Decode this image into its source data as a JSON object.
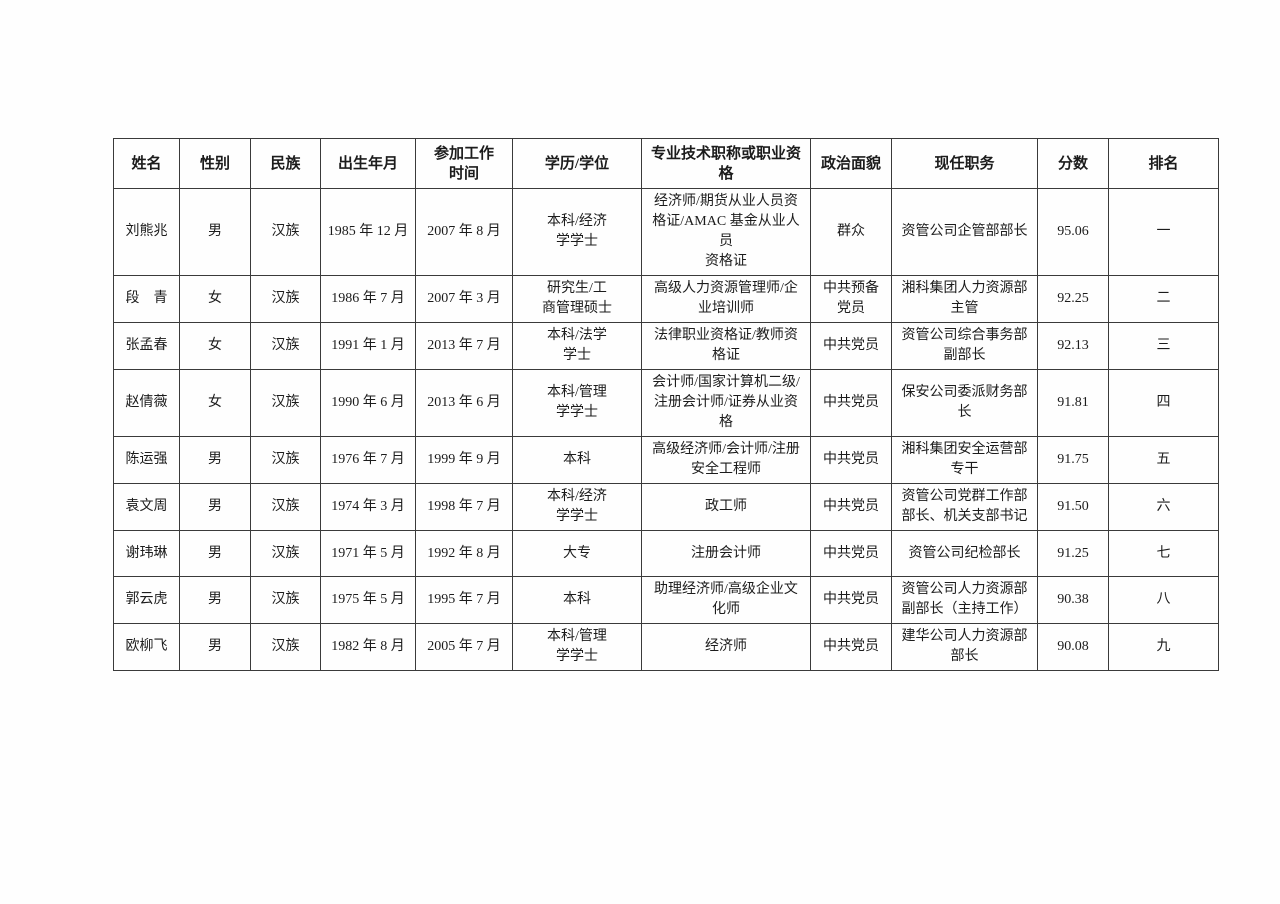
{
  "colors": {
    "page_background": "#fefefe",
    "ink": "#1c1c1c",
    "table_border": "#3a3a3a"
  },
  "table": {
    "headers": [
      "姓名",
      "性别",
      "民族",
      "出生年月",
      "参加工作\n时间",
      "学历/学位",
      "专业技术职称或职业资格",
      "政治面貌",
      "现任职务",
      "分数",
      "排名"
    ],
    "rows": [
      {
        "name": "刘熊兆",
        "gender": "男",
        "ethnicity": "汉族",
        "birth": "1985 年 12 月",
        "work_start": "2007 年 8 月",
        "education": "本科/经济\n学学士",
        "qualification": "经济师/期货从业人员资\n格证/AMAC 基金从业人员\n资格证",
        "political_status": "群众",
        "position": "资管公司企管部部长",
        "score": "95.06",
        "rank": "一"
      },
      {
        "name": "段　青",
        "gender": "女",
        "ethnicity": "汉族",
        "birth": "1986 年 7 月",
        "work_start": "2007 年 3 月",
        "education": "研究生/工\n商管理硕士",
        "qualification": "高级人力资源管理师/企\n业培训师",
        "political_status": "中共预备\n党员",
        "position": "湘科集团人力资源部\n主管",
        "score": "92.25",
        "rank": "二"
      },
      {
        "name": "张孟春",
        "gender": "女",
        "ethnicity": "汉族",
        "birth": "1991 年 1 月",
        "work_start": "2013 年 7 月",
        "education": "本科/法学\n学士",
        "qualification": "法律职业资格证/教师资\n格证",
        "political_status": "中共党员",
        "position": "资管公司综合事务部\n副部长",
        "score": "92.13",
        "rank": "三"
      },
      {
        "name": "赵倩薇",
        "gender": "女",
        "ethnicity": "汉族",
        "birth": "1990 年 6 月",
        "work_start": "2013 年 6 月",
        "education": "本科/管理\n学学士",
        "qualification": "会计师/国家计算机二级/\n注册会计师/证券从业资\n格",
        "political_status": "中共党员",
        "position": "保安公司委派财务部\n长",
        "score": "91.81",
        "rank": "四"
      },
      {
        "name": "陈运强",
        "gender": "男",
        "ethnicity": "汉族",
        "birth": "1976 年 7 月",
        "work_start": "1999 年 9 月",
        "education": "本科",
        "qualification": "高级经济师/会计师/注册\n安全工程师",
        "political_status": "中共党员",
        "position": "湘科集团安全运营部\n专干",
        "score": "91.75",
        "rank": "五"
      },
      {
        "name": "袁文周",
        "gender": "男",
        "ethnicity": "汉族",
        "birth": "1974 年 3 月",
        "work_start": "1998 年 7 月",
        "education": "本科/经济\n学学士",
        "qualification": "政工师",
        "political_status": "中共党员",
        "position": "资管公司党群工作部\n部长、机关支部书记",
        "score": "91.50",
        "rank": "六"
      },
      {
        "name": "谢玮琳",
        "gender": "男",
        "ethnicity": "汉族",
        "birth": "1971 年 5 月",
        "work_start": "1992 年 8 月",
        "education": "大专",
        "qualification": "注册会计师",
        "political_status": "中共党员",
        "position": "资管公司纪检部长",
        "score": "91.25",
        "rank": "七"
      },
      {
        "name": "郭云虎",
        "gender": "男",
        "ethnicity": "汉族",
        "birth": "1975 年 5 月",
        "work_start": "1995 年 7 月",
        "education": "本科",
        "qualification": "助理经济师/高级企业文\n化师",
        "political_status": "中共党员",
        "position": "资管公司人力资源部\n副部长（主持工作）",
        "score": "90.38",
        "rank": "八"
      },
      {
        "name": "欧柳飞",
        "gender": "男",
        "ethnicity": "汉族",
        "birth": "1982 年 8 月",
        "work_start": "2005 年 7 月",
        "education": "本科/管理\n学学士",
        "qualification": "经济师",
        "political_status": "中共党员",
        "position": "建华公司人力资源部\n部长",
        "score": "90.08",
        "rank": "九"
      }
    ],
    "column_keys": [
      "name",
      "gender",
      "ethnicity",
      "birth",
      "work_start",
      "education",
      "qualification",
      "political_status",
      "position",
      "score",
      "rank"
    ]
  }
}
